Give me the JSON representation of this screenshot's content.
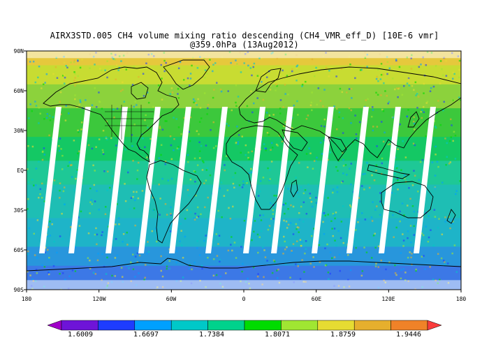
{
  "title": {
    "line1": "AIRX3STD.005 CH4 volume mixing ratio descending (CH4_VMR_eff_D) [10E-6 vmr]",
    "line2": "@359.0hPa (13Aug2012)"
  },
  "map": {
    "projection": "equirectangular",
    "lon_range": [
      -180,
      180
    ],
    "lat_range": [
      -90,
      90
    ],
    "lat_labels": [
      "90N",
      "60N",
      "30N",
      "EQ",
      "30S",
      "60S",
      "90S"
    ],
    "lon_labels": [
      "180",
      "120W",
      "60W",
      "0",
      "60E",
      "120E",
      "180"
    ],
    "land_outline_color": "#000000",
    "swath_gap_color": "#ffffff"
  },
  "colorbar": {
    "tick_labels": [
      "1.6009",
      "1.6697",
      "1.7384",
      "1.8071",
      "1.8759",
      "1.9446"
    ],
    "colors": [
      "#a000c8",
      "#6e14d8",
      "#1e3cff",
      "#00a0ff",
      "#00c8c8",
      "#00d28c",
      "#00dc00",
      "#a0e632",
      "#e6dc32",
      "#e6af2d",
      "#f08228",
      "#fa3c3c"
    ]
  }
}
